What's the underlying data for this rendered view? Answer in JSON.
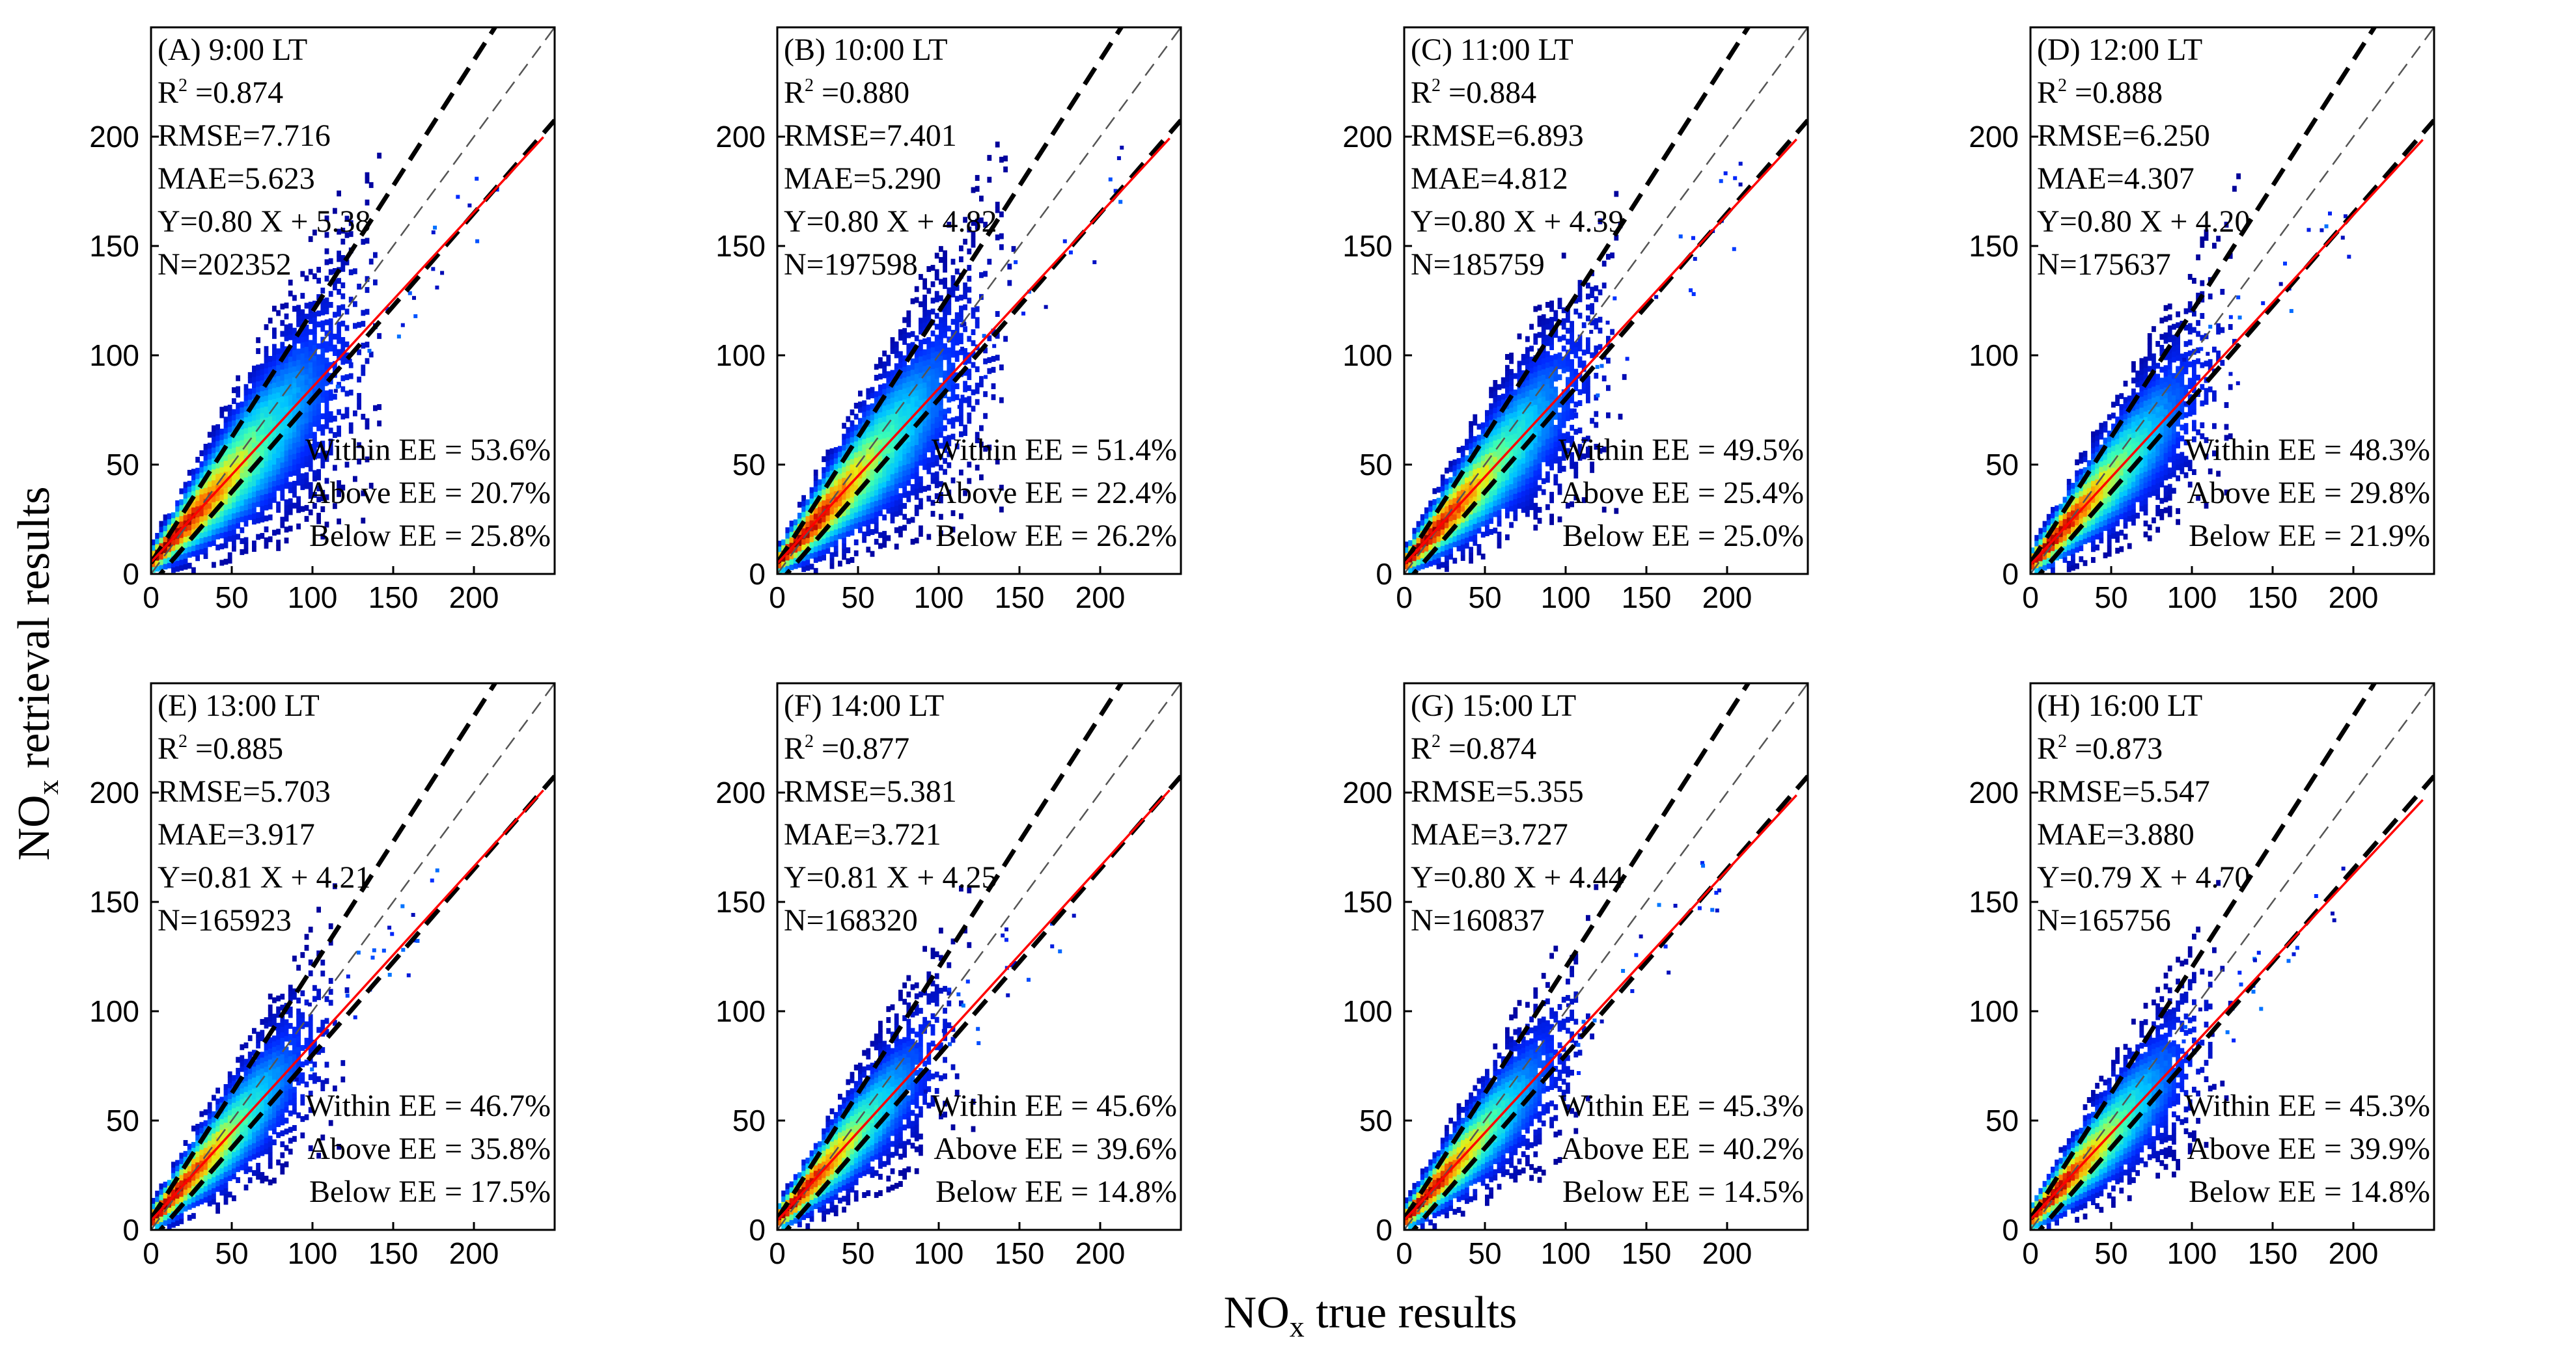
{
  "figure": {
    "ylabel": "NOx retrieval results",
    "xlabel": "NOx true results",
    "axis_max": 250,
    "ticks": [
      0,
      50,
      100,
      150,
      200
    ]
  },
  "chart_data": [
    {
      "type": "heatmap",
      "panel": "(A) 9:00 LT",
      "r2": "0.874",
      "rmse": "RMSE=7.716",
      "mae": "MAE=5.623",
      "fit": "Y=0.80 X + 5.38",
      "slope": 0.8,
      "intercept": 5.38,
      "n": "N=202352",
      "within": "Within EE = 53.6%",
      "above": "Above EE = 20.7%",
      "below": "Below EE = 25.8%",
      "spread": 1.0,
      "extent": 95
    },
    {
      "type": "heatmap",
      "panel": "(B) 10:00 LT",
      "r2": "0.880",
      "rmse": "RMSE=7.401",
      "mae": "MAE=5.290",
      "fit": "Y=0.80 X + 4.82",
      "slope": 0.8,
      "intercept": 4.82,
      "n": "N=197598",
      "within": "Within EE = 51.4%",
      "above": "Above EE = 22.4%",
      "below": "Below EE = 26.2%",
      "spread": 0.95,
      "extent": 95
    },
    {
      "type": "heatmap",
      "panel": "(C) 11:00 LT",
      "r2": "0.884",
      "rmse": "RMSE=6.893",
      "mae": "MAE=4.812",
      "fit": "Y=0.80 X + 4.39",
      "slope": 0.8,
      "intercept": 4.39,
      "n": "N=185759",
      "within": "Within EE = 49.5%",
      "above": "Above EE = 25.4%",
      "below": "Below EE = 25.0%",
      "spread": 0.9,
      "extent": 90
    },
    {
      "type": "heatmap",
      "panel": "(D) 12:00 LT",
      "r2": "0.888",
      "rmse": "RMSE=6.250",
      "mae": "MAE=4.307",
      "fit": "Y=0.80 X + 4.20",
      "slope": 0.8,
      "intercept": 4.2,
      "n": "N=175637",
      "within": "Within EE = 48.3%",
      "above": "Above EE = 29.8%",
      "below": "Below EE = 21.9%",
      "spread": 0.85,
      "extent": 85
    },
    {
      "type": "heatmap",
      "panel": "(E) 13:00 LT",
      "r2": "0.885",
      "rmse": "RMSE=5.703",
      "mae": "MAE=3.917",
      "fit": "Y=0.81 X + 4.21",
      "slope": 0.81,
      "intercept": 4.21,
      "n": "N=165923",
      "within": "Within EE = 46.7%",
      "above": "Above EE = 35.8%",
      "below": "Below EE = 17.5%",
      "spread": 0.8,
      "extent": 80
    },
    {
      "type": "heatmap",
      "panel": "(F) 14:00 LT",
      "r2": "0.877",
      "rmse": "RMSE=5.381",
      "mae": "MAE=3.721",
      "fit": "Y=0.81 X + 4.25",
      "slope": 0.81,
      "intercept": 4.25,
      "n": "N=168320",
      "within": "Within EE = 45.6%",
      "above": "Above EE = 39.6%",
      "below": "Below EE = 14.8%",
      "spread": 0.78,
      "extent": 78
    },
    {
      "type": "heatmap",
      "panel": "(G) 15:00 LT",
      "r2": "0.874",
      "rmse": "RMSE=5.355",
      "mae": "MAE=3.727",
      "fit": "Y=0.80 X + 4.44",
      "slope": 0.8,
      "intercept": 4.44,
      "n": "N=160837",
      "within": "Within EE = 45.3%",
      "above": "Above EE = 40.2%",
      "below": "Below EE = 14.5%",
      "spread": 0.78,
      "extent": 78
    },
    {
      "type": "heatmap",
      "panel": "(H) 16:00 LT",
      "r2": "0.873",
      "rmse": "RMSE=5.547",
      "mae": "MAE=3.880",
      "fit": "Y=0.79 X + 4.70",
      "slope": 0.79,
      "intercept": 4.7,
      "n": "N=165756",
      "within": "Within EE = 45.3%",
      "above": "Above EE = 39.9%",
      "below": "Below EE = 14.8%",
      "spread": 0.8,
      "extent": 80
    }
  ]
}
